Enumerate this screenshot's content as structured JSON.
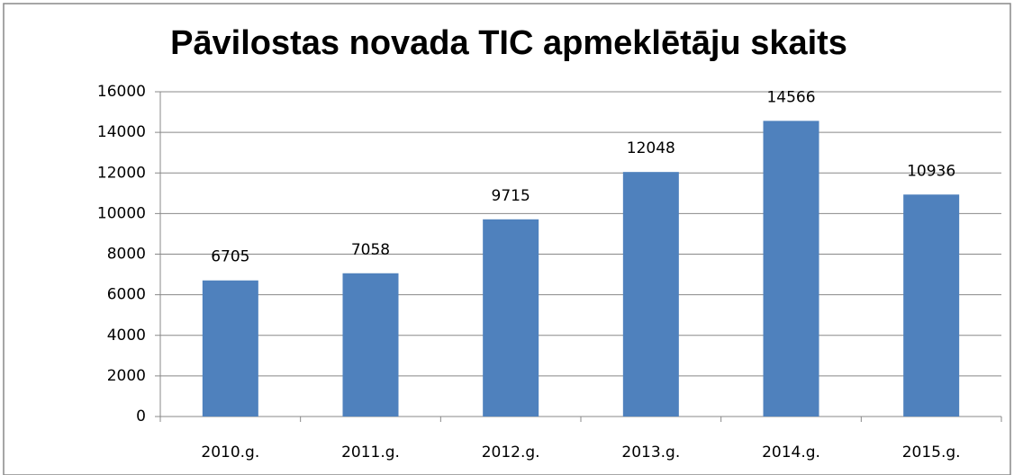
{
  "chart_data": {
    "type": "bar",
    "title": "Pāvilostas novada TIC apmeklētāju skaits",
    "categories": [
      "2010.g.",
      "2011.g.",
      "2012.g.",
      "2013.g.",
      "2014.g.",
      "2015.g."
    ],
    "values": [
      6705,
      7058,
      9715,
      12048,
      14566,
      10936
    ],
    "color": "#4f81bd",
    "ylim": [
      0,
      16000
    ],
    "yticks": [
      0,
      2000,
      4000,
      6000,
      8000,
      10000,
      12000,
      14000,
      16000
    ],
    "grid": true
  }
}
